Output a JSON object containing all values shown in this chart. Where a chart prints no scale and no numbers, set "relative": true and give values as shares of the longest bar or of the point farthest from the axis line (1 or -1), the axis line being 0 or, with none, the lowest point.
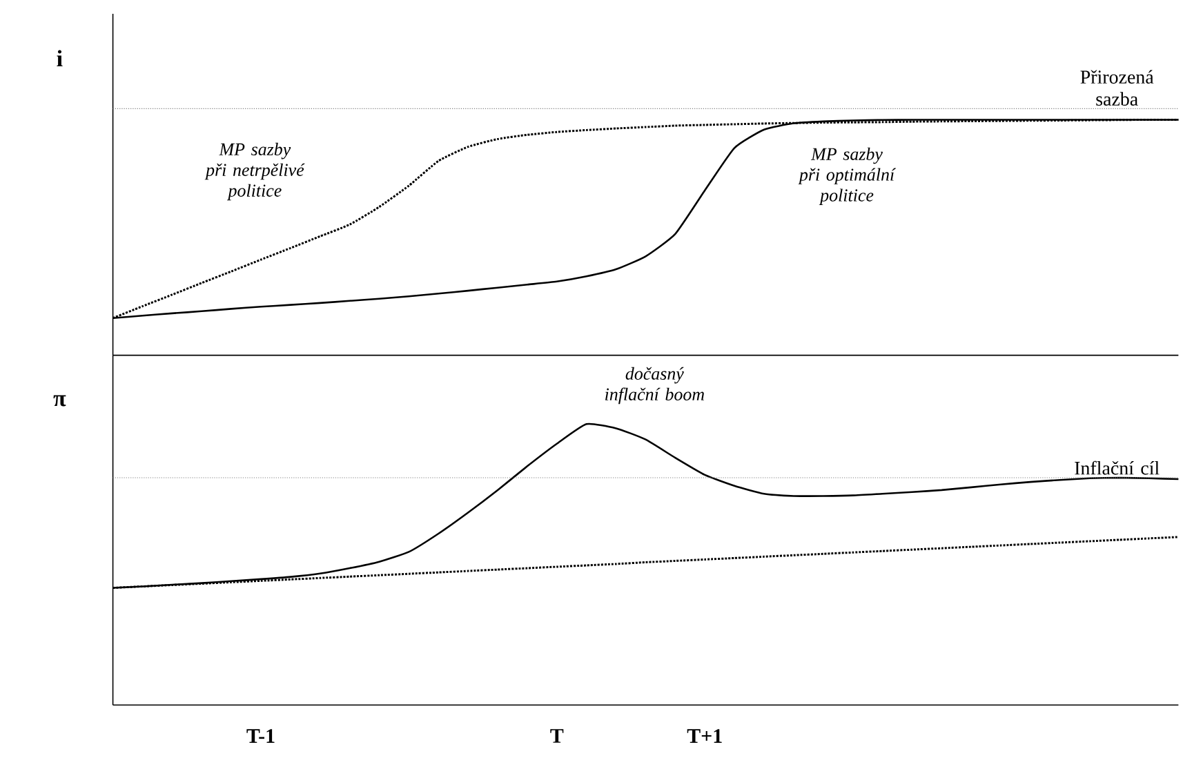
{
  "chart_data": [
    {
      "type": "line",
      "ylabel": "i",
      "relative": true,
      "marker": "none",
      "categories": [
        null,
        null,
        null,
        null,
        null,
        null,
        null,
        null,
        null,
        null,
        null,
        null,
        null,
        null,
        null,
        null,
        null,
        null,
        null,
        null,
        null,
        null,
        null,
        null,
        null,
        null,
        null,
        null,
        null,
        null,
        null,
        null,
        null,
        null,
        null,
        null,
        null
      ],
      "series": [
        {
          "color": "#000000",
          "line_style": "solid",
          "values": [
            0.158,
            0.168,
            0.178,
            0.187,
            0.197,
            0.206,
            0.214,
            0.222,
            0.231,
            0.24,
            0.25,
            0.262,
            0.274,
            0.287,
            0.3,
            0.313,
            0.335,
            0.365,
            0.42,
            0.515,
            0.7,
            0.88,
            0.958,
            0.985,
            0.993,
            0.997,
            0.999,
            1.0,
            1.0,
            1.0,
            1.0,
            1.0,
            1.0,
            1.0,
            1.0,
            1.0,
            1.0
          ]
        },
        {
          "color": "#000000",
          "line_style": "dotted",
          "values": [
            0.158,
            0.208,
            0.257,
            0.307,
            0.356,
            0.406,
            0.455,
            0.505,
            0.555,
            0.63,
            0.72,
            0.825,
            0.885,
            0.918,
            0.936,
            0.948,
            0.956,
            0.963,
            0.969,
            0.975,
            0.978,
            0.981,
            0.984,
            0.986,
            0.988,
            0.989,
            0.99,
            0.992,
            0.993,
            0.994,
            0.995,
            0.996,
            0.997,
            0.998,
            0.999,
            1.0,
            1.0
          ]
        }
      ],
      "ref_lines": [
        {
          "axis": "y",
          "value": 1.047,
          "label": "Přirozená sazba",
          "color": "#808080",
          "line_style": "dotted"
        }
      ],
      "annotations": [
        "MP sazby při netrpělivé politice",
        "MP sazby při optimální politice"
      ]
    },
    {
      "type": "line",
      "ylabel": "π",
      "relative": true,
      "tick_labels": "x",
      "marker": "none",
      "categories": [
        null,
        null,
        null,
        null,
        null,
        "T-1",
        null,
        null,
        null,
        null,
        null,
        null,
        null,
        null,
        null,
        "T",
        null,
        null,
        null,
        null,
        "T+1",
        null,
        null,
        null,
        null,
        null,
        null,
        null,
        null,
        null,
        null,
        null,
        null,
        null,
        null,
        null,
        null
      ],
      "series": [
        {
          "color": "#000000",
          "line_style": "solid",
          "values": [
            0.417,
            0.422,
            0.428,
            0.434,
            0.441,
            0.448,
            0.456,
            0.468,
            0.487,
            0.51,
            0.545,
            0.61,
            0.685,
            0.765,
            0.85,
            0.93,
            1.0,
            0.985,
            0.945,
            0.88,
            0.819,
            0.78,
            0.752,
            0.744,
            0.744,
            0.746,
            0.752,
            0.758,
            0.765,
            0.775,
            0.785,
            0.794,
            0.801,
            0.807,
            0.809,
            0.807,
            0.804
          ]
        },
        {
          "color": "#000000",
          "line_style": "dotted",
          "values": [
            0.417,
            0.422,
            0.427,
            0.432,
            0.437,
            0.442,
            0.447,
            0.452,
            0.457,
            0.462,
            0.467,
            0.472,
            0.477,
            0.482,
            0.487,
            0.492,
            0.497,
            0.502,
            0.508,
            0.513,
            0.518,
            0.523,
            0.528,
            0.533,
            0.538,
            0.543,
            0.548,
            0.553,
            0.558,
            0.563,
            0.568,
            0.573,
            0.578,
            0.583,
            0.588,
            0.593,
            0.598
          ]
        }
      ],
      "ref_lines": [
        {
          "axis": "y",
          "value": 0.809,
          "label": "Inflační cíl",
          "color": "#808080",
          "line_style": "dotted"
        }
      ],
      "annotations": [
        "dočasný inflační boom"
      ]
    }
  ]
}
